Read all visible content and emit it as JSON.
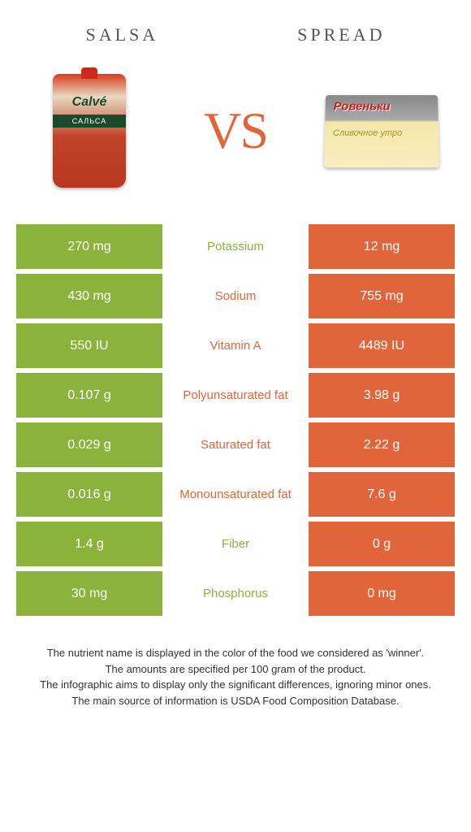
{
  "header": {
    "left_title": "Salsa",
    "right_title": "Spread",
    "vs": "VS"
  },
  "colors": {
    "green": "#8bb33c",
    "orange": "#e0653a",
    "bg": "#ffffff"
  },
  "table": {
    "left_color": "green",
    "right_color": "orange",
    "rows": [
      {
        "left": "270 mg",
        "label": "Potassium",
        "right": "12 mg",
        "winner": "green"
      },
      {
        "left": "430 mg",
        "label": "Sodium",
        "right": "755 mg",
        "winner": "orange"
      },
      {
        "left": "550 IU",
        "label": "Vitamin A",
        "right": "4489 IU",
        "winner": "orange"
      },
      {
        "left": "0.107 g",
        "label": "Polyunsaturated fat",
        "right": "3.98 g",
        "winner": "orange"
      },
      {
        "left": "0.029 g",
        "label": "Saturated fat",
        "right": "2.22 g",
        "winner": "orange"
      },
      {
        "left": "0.016 g",
        "label": "Monounsaturated fat",
        "right": "7.6 g",
        "winner": "orange"
      },
      {
        "left": "1.4 g",
        "label": "Fiber",
        "right": "0 g",
        "winner": "green"
      },
      {
        "left": "30 mg",
        "label": "Phosphorus",
        "right": "0 mg",
        "winner": "green"
      }
    ]
  },
  "footer": {
    "line1": "The nutrient name is displayed in the color of the food we considered as 'winner'.",
    "line2": "The amounts are specified per 100 gram of the product.",
    "line3": "The infographic aims to display only the significant differences, ignoring minor ones.",
    "line4": "The main source of information is USDA Food Composition Database."
  }
}
